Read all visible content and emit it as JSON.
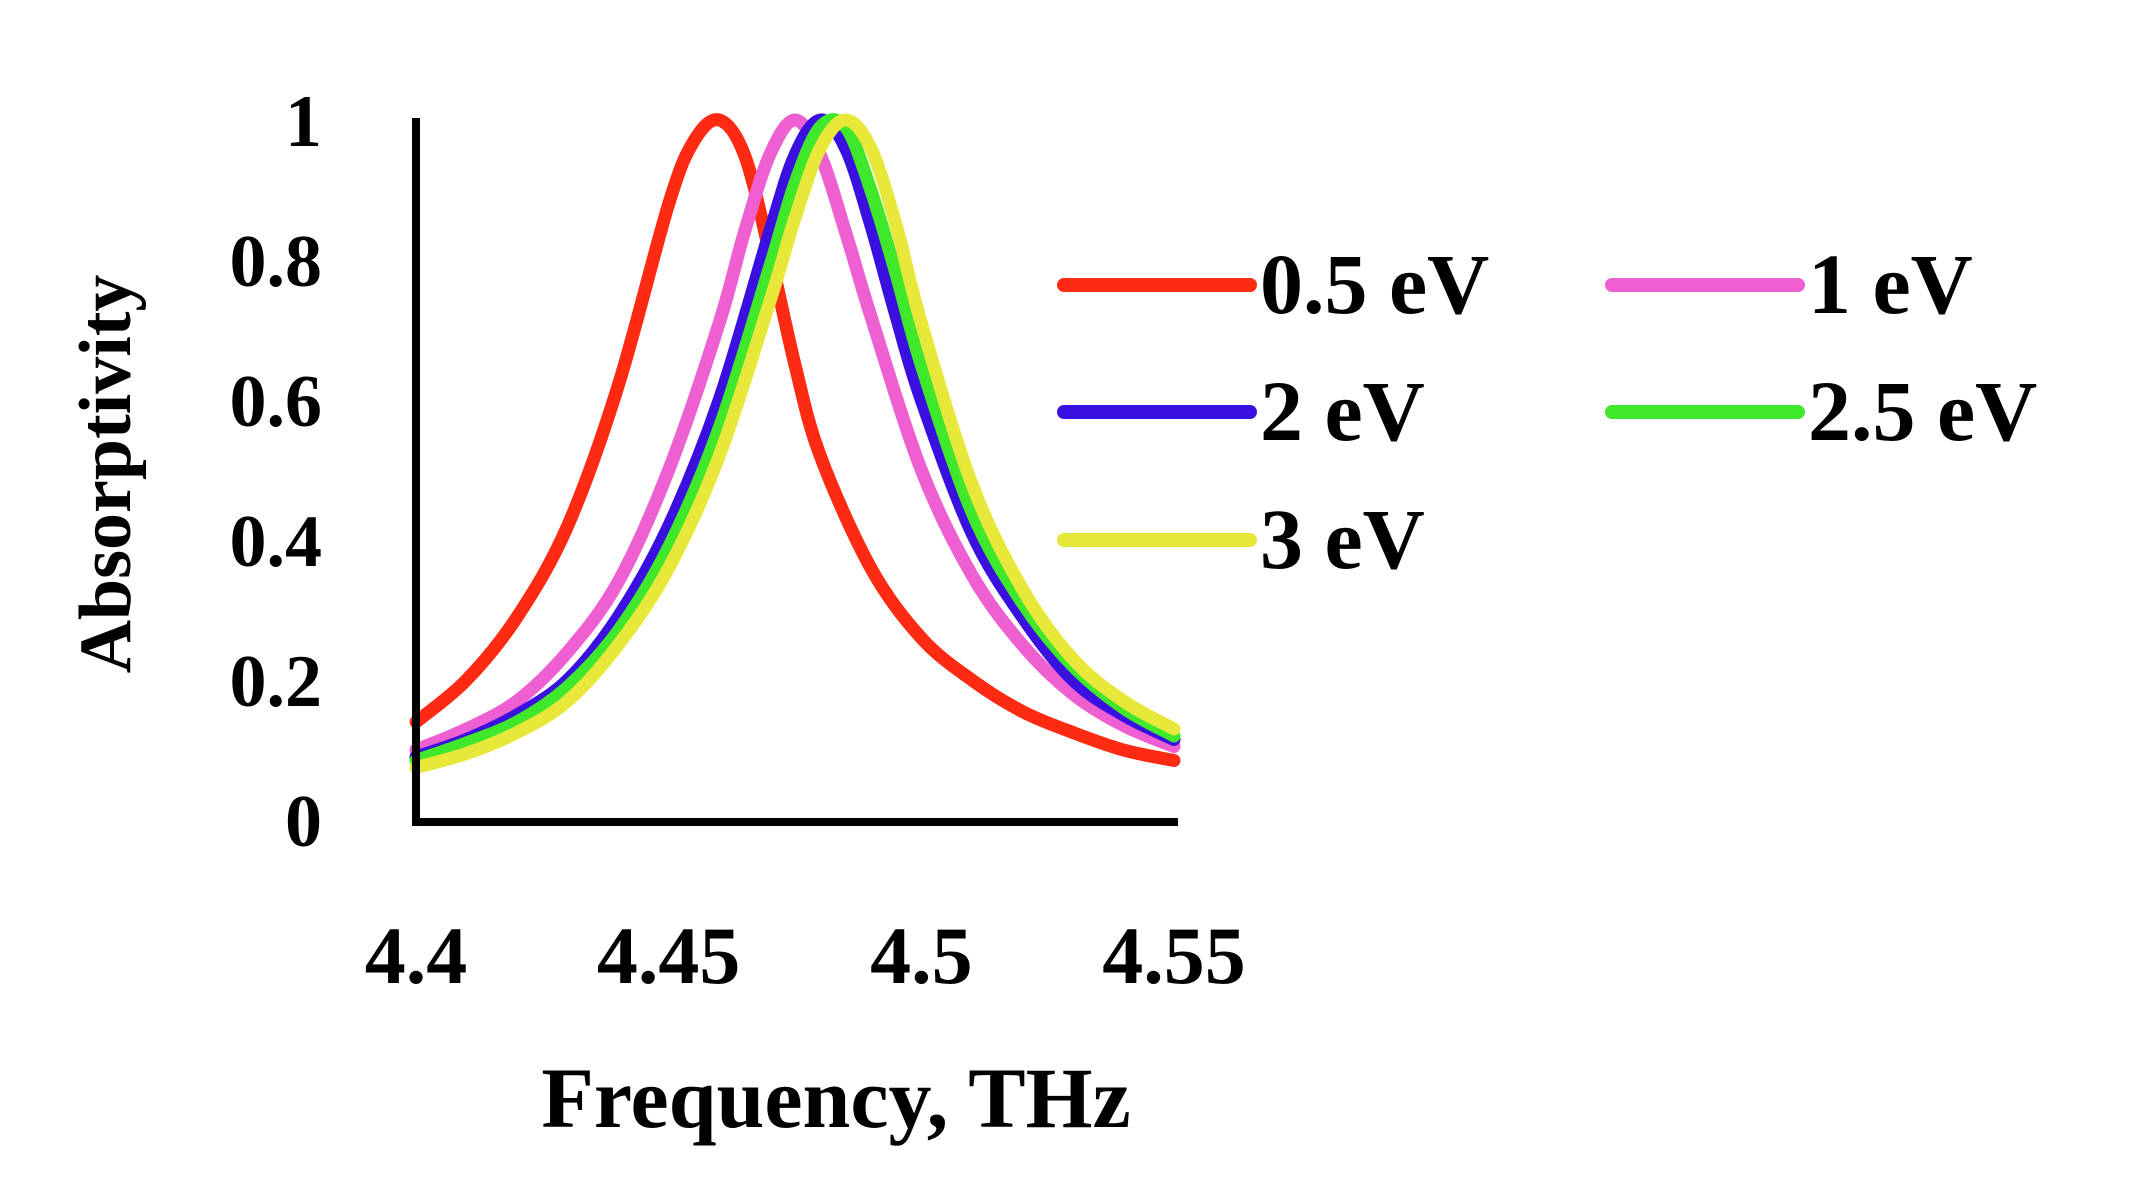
{
  "chart_data": {
    "type": "line",
    "xlabel": "Frequency, THz",
    "ylabel": "Absorptivity",
    "xlim": [
      4.4,
      4.55
    ],
    "ylim": [
      0,
      1
    ],
    "xticks": [
      4.4,
      4.45,
      4.5,
      4.55
    ],
    "xtick_labels": [
      "4.4",
      "4.45",
      "4.5",
      "4.55"
    ],
    "yticks": [
      0,
      0.2,
      0.4,
      0.6,
      0.8,
      1
    ],
    "ytick_labels": [
      "0",
      "0.2",
      "0.4",
      "0.6",
      "0.8",
      "1"
    ],
    "grid": false,
    "legend_position": "right",
    "series": [
      {
        "name": "0.5 eV",
        "color": "#ff2a12",
        "x": [
          4.4,
          4.41,
          4.42,
          4.43,
          4.44,
          4.45,
          4.455,
          4.46,
          4.465,
          4.47,
          4.475,
          4.48,
          4.49,
          4.5,
          4.51,
          4.52,
          4.53,
          4.54,
          4.55
        ],
        "y": [
          0.14,
          0.2,
          0.29,
          0.42,
          0.62,
          0.88,
          0.97,
          1.0,
          0.95,
          0.81,
          0.65,
          0.52,
          0.36,
          0.26,
          0.2,
          0.155,
          0.125,
          0.1,
          0.085
        ]
      },
      {
        "name": "1 eV",
        "color": "#ee5fd2",
        "x": [
          4.4,
          4.41,
          4.42,
          4.43,
          4.44,
          4.45,
          4.46,
          4.465,
          4.47,
          4.475,
          4.48,
          4.485,
          4.49,
          4.5,
          4.51,
          4.52,
          4.53,
          4.54,
          4.55
        ],
        "y": [
          0.1,
          0.13,
          0.17,
          0.24,
          0.34,
          0.5,
          0.71,
          0.84,
          0.95,
          1.0,
          0.95,
          0.84,
          0.72,
          0.5,
          0.35,
          0.25,
          0.18,
          0.135,
          0.105
        ]
      },
      {
        "name": "2 eV",
        "color": "#3a10e0",
        "x": [
          4.4,
          4.41,
          4.42,
          4.43,
          4.44,
          4.45,
          4.46,
          4.47,
          4.475,
          4.48,
          4.485,
          4.49,
          4.495,
          4.5,
          4.51,
          4.52,
          4.53,
          4.54,
          4.55
        ],
        "y": [
          0.09,
          0.115,
          0.15,
          0.2,
          0.29,
          0.42,
          0.6,
          0.84,
          0.95,
          1.0,
          0.96,
          0.85,
          0.72,
          0.6,
          0.41,
          0.29,
          0.2,
          0.15,
          0.115
        ]
      },
      {
        "name": "2.5 eV",
        "color": "#3fe82b",
        "x": [
          4.4,
          4.41,
          4.42,
          4.43,
          4.44,
          4.45,
          4.46,
          4.47,
          4.475,
          4.48,
          4.485,
          4.49,
          4.495,
          4.5,
          4.51,
          4.52,
          4.53,
          4.54,
          4.55
        ],
        "y": [
          0.085,
          0.11,
          0.14,
          0.19,
          0.27,
          0.39,
          0.56,
          0.79,
          0.91,
          0.99,
          0.99,
          0.9,
          0.78,
          0.65,
          0.44,
          0.31,
          0.22,
          0.16,
          0.12
        ]
      },
      {
        "name": "3 eV",
        "color": "#e8e83a",
        "x": [
          4.4,
          4.41,
          4.42,
          4.43,
          4.44,
          4.45,
          4.46,
          4.47,
          4.475,
          4.48,
          4.485,
          4.49,
          4.495,
          4.5,
          4.51,
          4.52,
          4.53,
          4.54,
          4.55
        ],
        "y": [
          0.075,
          0.095,
          0.125,
          0.17,
          0.25,
          0.36,
          0.52,
          0.74,
          0.86,
          0.96,
          1.0,
          0.96,
          0.85,
          0.71,
          0.48,
          0.33,
          0.23,
          0.17,
          0.13
        ]
      }
    ]
  }
}
